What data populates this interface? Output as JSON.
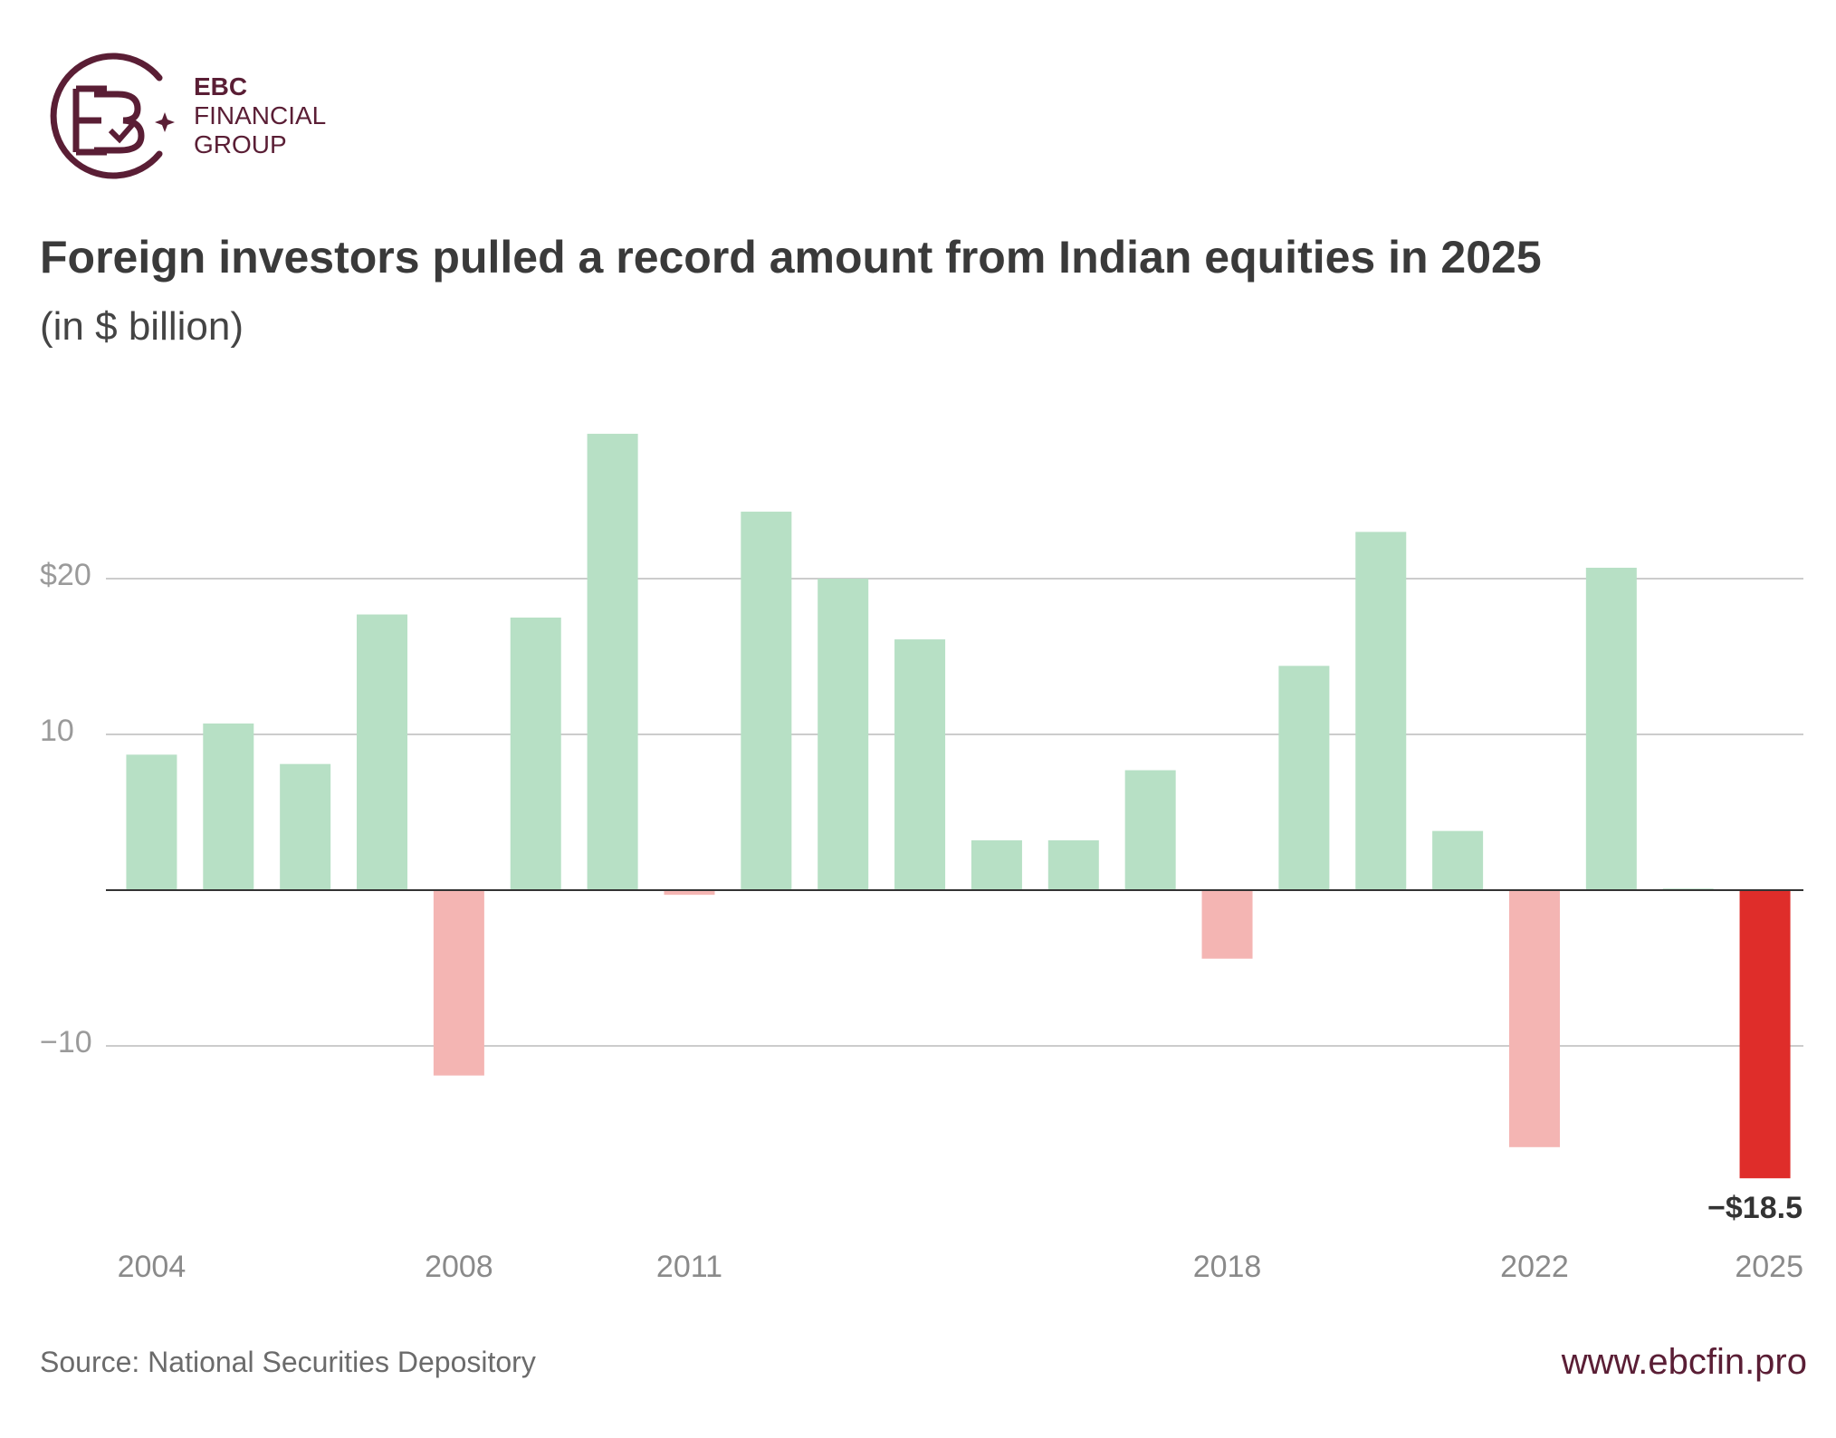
{
  "brand": {
    "line1": "EBC",
    "line2": "FINANCIAL",
    "line3": "GROUP",
    "logo_icon": "ebc-monogram-icon",
    "color": "#5a1e35"
  },
  "footer": {
    "source": "Source: National Securities Depository",
    "website": "www.ebcfin.pro"
  },
  "chart_data": {
    "type": "bar",
    "title": "Foreign investors pulled a record amount from Indian equities in 2025",
    "subtitle": "(in $ billion)",
    "xlabel": "",
    "ylabel": "",
    "categories": [
      "2004",
      "2005",
      "2006",
      "2007",
      "2008",
      "2009",
      "2010",
      "2011",
      "2012",
      "2013",
      "2014",
      "2015",
      "2016",
      "2017",
      "2018",
      "2019",
      "2020",
      "2021",
      "2022",
      "2023",
      "2024",
      "2025"
    ],
    "values": [
      8.7,
      10.7,
      8.1,
      17.7,
      -11.9,
      17.5,
      29.3,
      -0.3,
      24.3,
      20.0,
      16.1,
      3.2,
      3.2,
      7.7,
      -4.4,
      14.4,
      23.0,
      3.8,
      -16.5,
      20.7,
      0.1,
      -18.5
    ],
    "xticks": [
      "2004",
      "2008",
      "2011",
      "2018",
      "2022",
      "2025"
    ],
    "yticks": [
      {
        "value": 20,
        "label": "$20"
      },
      {
        "value": 10,
        "label": "10"
      },
      {
        "value": -10,
        "label": "−10"
      }
    ],
    "ylim": [
      -22,
      32
    ],
    "grid": true,
    "annotation": {
      "category": "2025",
      "text": "−$18.5"
    },
    "colors": {
      "positive": "#b7e0c5",
      "negative": "#f4b5b3",
      "highlight": "#df2d2a",
      "grid": "#cccccc",
      "zero_line": "#333333"
    }
  }
}
